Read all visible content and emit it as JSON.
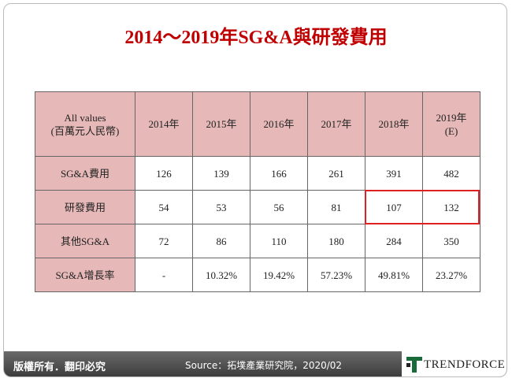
{
  "title": "2014～2019年SG&A與研發費用",
  "table": {
    "header": [
      "All  values\n(百萬元人民幣)",
      "2014年",
      "2015年",
      "2016年",
      "2017年",
      "2018年",
      "2019年\n(E)"
    ],
    "rows": [
      [
        "SG&A費用",
        126,
        139,
        166,
        261,
        391,
        482
      ],
      [
        "研發費用",
        54,
        53,
        56,
        81,
        107,
        132
      ],
      [
        "其他SG&A",
        72,
        86,
        110,
        180,
        284,
        350
      ],
      [
        "SG&A增長率",
        "-",
        "10.32%",
        "19.42%",
        "57.23%",
        "49.81%",
        "23.27%"
      ]
    ]
  },
  "footer": {
    "rights": "版權所有．翻印必究",
    "source": "Source：拓墣產業研究院，2020/02",
    "logo": "TRENDFORCE"
  }
}
